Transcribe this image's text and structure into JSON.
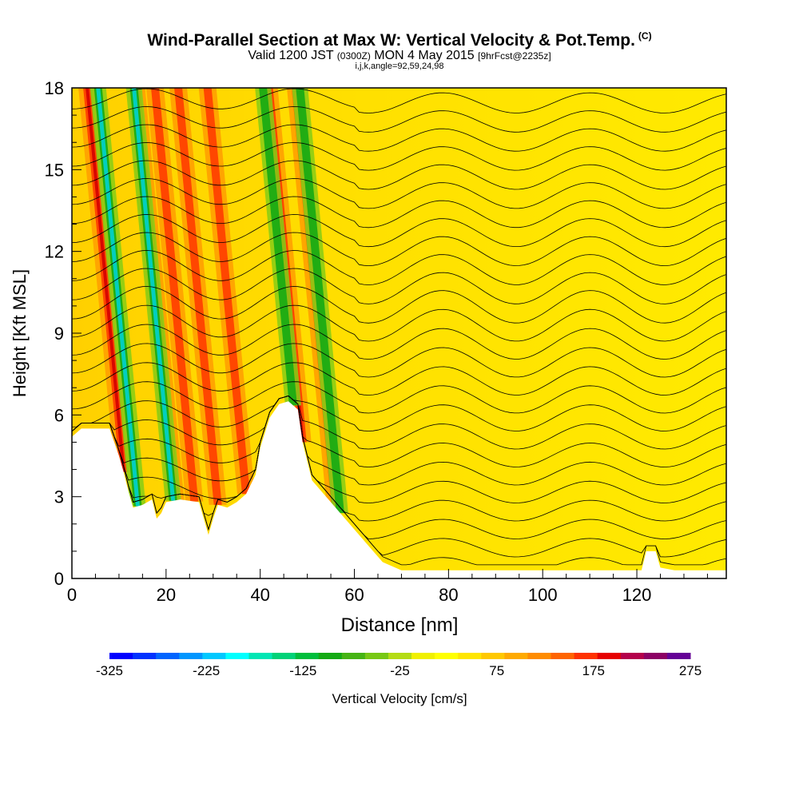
{
  "header": {
    "title": "Wind-Parallel Section at Max W: Vertical Velocity & Pot.Temp.",
    "title_tag": "(C)",
    "subtitle_pre": "Valid 1200 JST",
    "subtitle_zulu": "(0300Z)",
    "subtitle_mid": "MON 4 May 2015",
    "subtitle_fcst": "[9hrFcst@2235z]",
    "grid_info": "i,j,k,angle=92,59,24,98"
  },
  "chart_data": {
    "type": "heatmap",
    "xlabel": "Distance [nm]",
    "ylabel": "Height [Kft MSL]",
    "xlim": [
      0,
      139
    ],
    "ylim": [
      0,
      18
    ],
    "x_ticks": [
      0,
      20,
      40,
      60,
      80,
      100,
      120
    ],
    "y_ticks": [
      0,
      3,
      6,
      9,
      12,
      15,
      18
    ],
    "background_field": "Vertical Velocity",
    "contour_field": "Pot.Temp.",
    "terrain_kft": [
      [
        0,
        5.2
      ],
      [
        2,
        5.5
      ],
      [
        8,
        5.5
      ],
      [
        10,
        4.5
      ],
      [
        11,
        3.9
      ],
      [
        12,
        3.2
      ],
      [
        13,
        2.6
      ],
      [
        15,
        2.7
      ],
      [
        17,
        2.9
      ],
      [
        18,
        2.2
      ],
      [
        19,
        2.4
      ],
      [
        20,
        2.8
      ],
      [
        23,
        2.9
      ],
      [
        27,
        2.8
      ],
      [
        29,
        1.6
      ],
      [
        30,
        2.2
      ],
      [
        31,
        2.7
      ],
      [
        33,
        2.6
      ],
      [
        35,
        2.8
      ],
      [
        37,
        3.1
      ],
      [
        39,
        3.8
      ],
      [
        40,
        4.8
      ],
      [
        42,
        5.9
      ],
      [
        44,
        6.4
      ],
      [
        46,
        6.5
      ],
      [
        48,
        6.2
      ],
      [
        49,
        5.0
      ],
      [
        51,
        3.6
      ],
      [
        54,
        3.0
      ],
      [
        57,
        2.4
      ],
      [
        60,
        1.8
      ],
      [
        63,
        1.2
      ],
      [
        66,
        0.6
      ],
      [
        70,
        0.3
      ],
      [
        80,
        0.3
      ],
      [
        100,
        0.3
      ],
      [
        121,
        0.3
      ],
      [
        122,
        1.0
      ],
      [
        124,
        1.0
      ],
      [
        125,
        0.4
      ],
      [
        128,
        0.3
      ],
      [
        139,
        0.3
      ]
    ],
    "updraft_cores_nm": [
      11,
      22,
      26,
      31,
      37,
      49,
      56
    ],
    "downdraft_cores_nm": [
      14,
      21.5,
      47,
      57
    ],
    "colorbar": {
      "label": "Vertical Velocity [cm/s]",
      "min": -325,
      "max": 275,
      "step": 25,
      "tick_labels": [
        "-325",
        "-225",
        "-125",
        "-25",
        "75",
        "175",
        "275"
      ],
      "colors": [
        "#0000ff",
        "#0032ff",
        "#0064ff",
        "#0096ff",
        "#00c8ff",
        "#00ffff",
        "#00e6b4",
        "#00d278",
        "#00be3c",
        "#14aa14",
        "#46b414",
        "#78c814",
        "#b4dc14",
        "#f0f000",
        "#ffff00",
        "#ffe600",
        "#ffc800",
        "#ffaa00",
        "#ff8c00",
        "#ff6400",
        "#ff3200",
        "#e60000",
        "#b4004b",
        "#8c0064",
        "#640096"
      ]
    }
  }
}
